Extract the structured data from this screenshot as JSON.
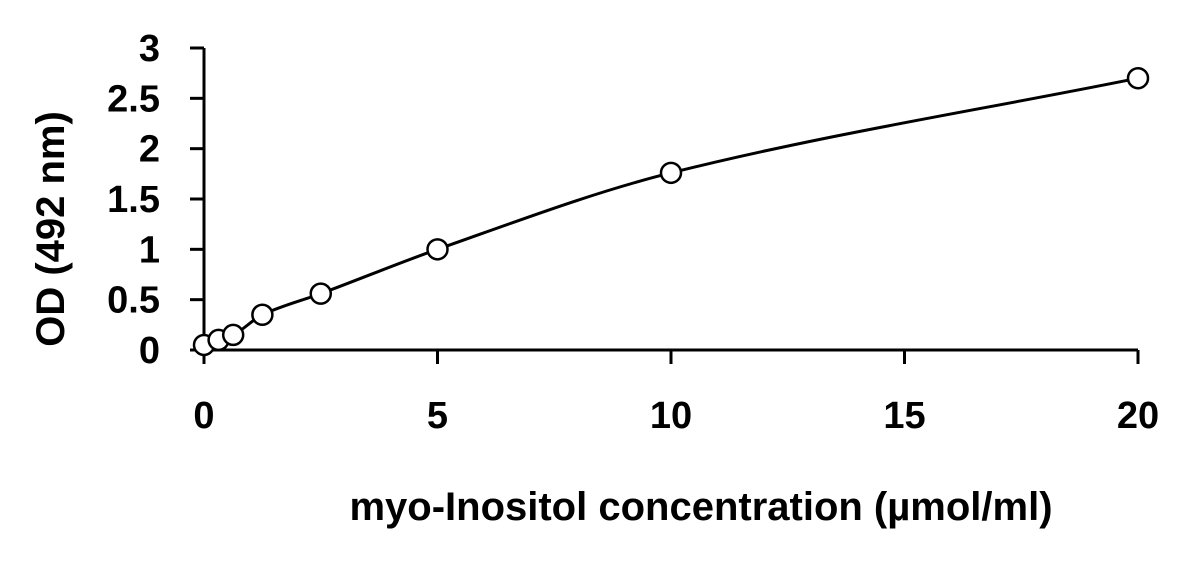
{
  "chart_data": {
    "type": "scatter",
    "title": "",
    "xlabel": "myo-Inositol concentration (µmol/ml)",
    "ylabel": "OD (492 nm)",
    "xlim": [
      0,
      20
    ],
    "ylim": [
      0,
      3
    ],
    "x_ticks": [
      "0",
      "5",
      "10",
      "15",
      "20"
    ],
    "y_ticks": [
      "0",
      "0.5",
      "1",
      "1.5",
      "2",
      "2.5",
      "3"
    ],
    "grid": false,
    "legend": "none",
    "fit_line": true,
    "series": [
      {
        "x": [
          0,
          0.3125,
          0.625,
          1.25,
          2.5,
          5,
          10,
          20
        ],
        "y": [
          0.05,
          0.1,
          0.15,
          0.35,
          0.56,
          1.0,
          1.76,
          2.7
        ]
      }
    ],
    "colors": {
      "marker_fill": "#ffffff",
      "stroke": "#000000"
    }
  }
}
